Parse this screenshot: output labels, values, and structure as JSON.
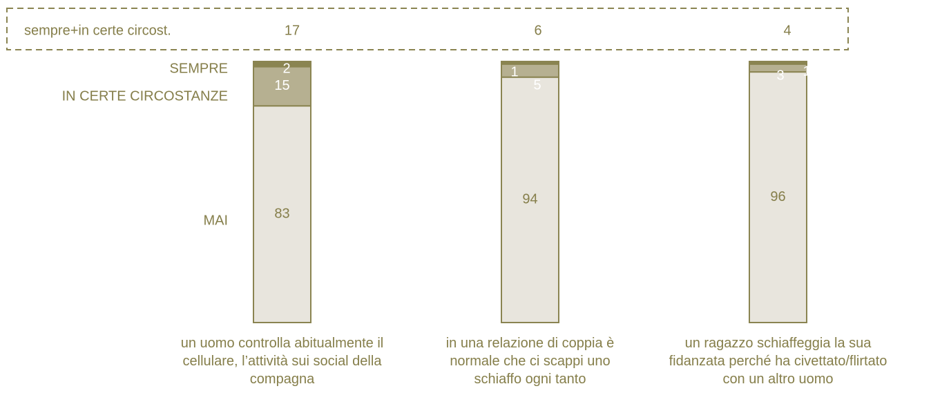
{
  "chart_data": {
    "type": "stacked-bar",
    "categories": [
      "un uomo controlla abitualmente il\ncellulare, l’attività sui social della\ncompagna",
      "in una relazione di coppia è\nnormale che ci scappi uno\nschiaffo ogni tanto",
      "un ragazzo schiaffeggia la sua\nfidanzata perché ha civettato/flirtato\ncon un altro uomo"
    ],
    "series": [
      {
        "name": "SEMPRE",
        "color": "#8a8451",
        "values": [
          2,
          1,
          1
        ]
      },
      {
        "name": "IN CERTE CIRCOSTANZE",
        "color": "#b6b091",
        "values": [
          15,
          5,
          3
        ]
      },
      {
        "name": "MAI",
        "color": "#e8e5dd",
        "values": [
          83,
          94,
          96
        ]
      }
    ],
    "summary": {
      "label": "sempre+in certe circost.",
      "values": [
        17,
        6,
        4
      ]
    }
  }
}
